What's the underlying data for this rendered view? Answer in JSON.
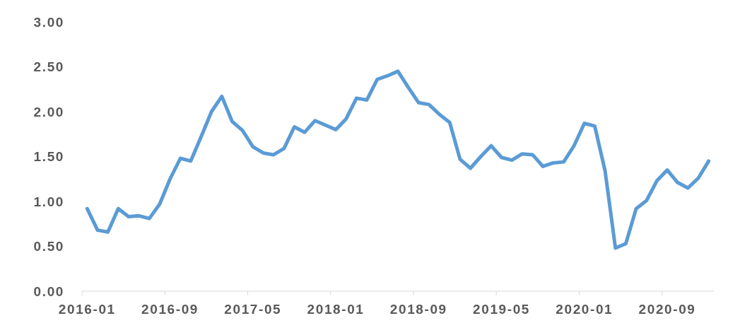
{
  "chart_data": {
    "type": "line",
    "categories": [
      "2016-01",
      null,
      null,
      null,
      null,
      null,
      null,
      null,
      "2016-09",
      null,
      null,
      null,
      null,
      null,
      null,
      null,
      "2017-05",
      null,
      null,
      null,
      null,
      null,
      null,
      null,
      "2018-01",
      null,
      null,
      null,
      null,
      null,
      null,
      null,
      "2018-09",
      null,
      null,
      null,
      null,
      null,
      null,
      null,
      "2019-05",
      null,
      null,
      null,
      null,
      null,
      null,
      null,
      "2020-01",
      null,
      null,
      null,
      null,
      null,
      null,
      null,
      "2020-09",
      null,
      null,
      null,
      null
    ],
    "series": [
      {
        "color": "#5b9bd5",
        "values": [
          0.92,
          0.68,
          0.66,
          0.92,
          0.83,
          0.84,
          0.81,
          0.97,
          1.25,
          1.48,
          1.45,
          1.72,
          2.0,
          2.17,
          1.89,
          1.79,
          1.61,
          1.54,
          1.52,
          1.59,
          1.83,
          1.77,
          1.9,
          1.85,
          1.8,
          1.92,
          2.15,
          2.13,
          2.36,
          2.4,
          2.45,
          2.27,
          2.1,
          2.08,
          1.97,
          1.88,
          1.47,
          1.37,
          1.5,
          1.62,
          1.49,
          1.46,
          1.53,
          1.52,
          1.39,
          1.43,
          1.44,
          1.62,
          1.87,
          1.84,
          1.34,
          0.48,
          0.53,
          0.92,
          1.01,
          1.23,
          1.35,
          1.21,
          1.15,
          1.26,
          1.45
        ]
      }
    ],
    "ylim": [
      0,
      3
    ],
    "yticks": [
      {
        "value": 0,
        "label": "0.00"
      },
      {
        "value": 0.5,
        "label": "0.50"
      },
      {
        "value": 1,
        "label": "1.00"
      },
      {
        "value": 1.5,
        "label": "1.50"
      },
      {
        "value": 2,
        "label": "2.00"
      },
      {
        "value": 2.5,
        "label": "2.50"
      },
      {
        "value": 3,
        "label": "3.00"
      }
    ]
  }
}
